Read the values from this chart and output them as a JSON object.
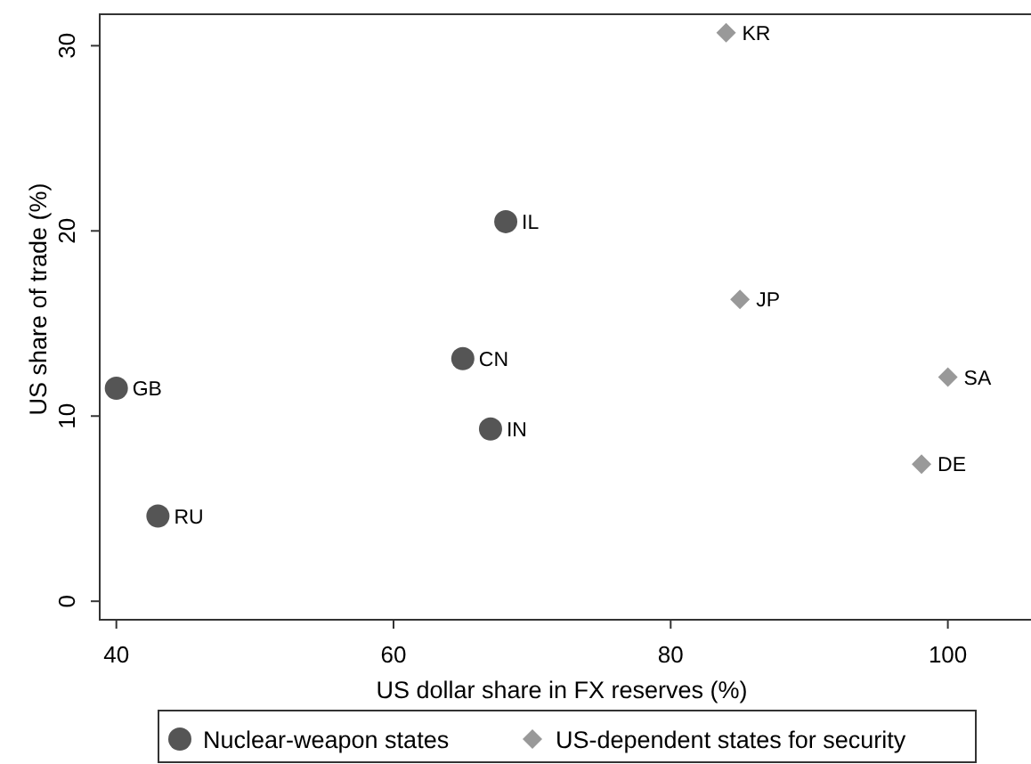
{
  "chart_data": {
    "type": "scatter",
    "xlabel": "US dollar share in FX reserves (%)",
    "ylabel": "US share of trade (%)",
    "xlim": [
      38.8,
      106
    ],
    "ylim": [
      -1,
      31.7
    ],
    "xticks": [
      40,
      60,
      80,
      100
    ],
    "yticks": [
      0,
      10,
      20,
      30
    ],
    "grid": false,
    "legend": "bottom",
    "series": [
      {
        "name": "Nuclear-weapon states",
        "color": "#555555",
        "marker": "circle",
        "x": [
          40,
          43,
          65,
          67,
          68.1
        ],
        "values": [
          11.5,
          4.6,
          13.1,
          9.3,
          20.5
        ]
      },
      {
        "name": "US-dependent states for security",
        "color": "#999999",
        "marker": "diamond",
        "x": [
          84,
          85,
          100,
          98.1
        ],
        "values": [
          30.7,
          16.3,
          12.1,
          7.4
        ]
      }
    ],
    "annotations": [
      {
        "text": "GB",
        "x": 40,
        "y": 11.5
      },
      {
        "text": "RU",
        "x": 43,
        "y": 4.6
      },
      {
        "text": "CN",
        "x": 65,
        "y": 13.1
      },
      {
        "text": "IN",
        "x": 67,
        "y": 9.3
      },
      {
        "text": "IL",
        "x": 68.1,
        "y": 20.5
      },
      {
        "text": "KR",
        "x": 84,
        "y": 30.7
      },
      {
        "text": "JP",
        "x": 85,
        "y": 16.3
      },
      {
        "text": "SA",
        "x": 100,
        "y": 12.1
      },
      {
        "text": "DE",
        "x": 98.1,
        "y": 7.4
      }
    ]
  }
}
